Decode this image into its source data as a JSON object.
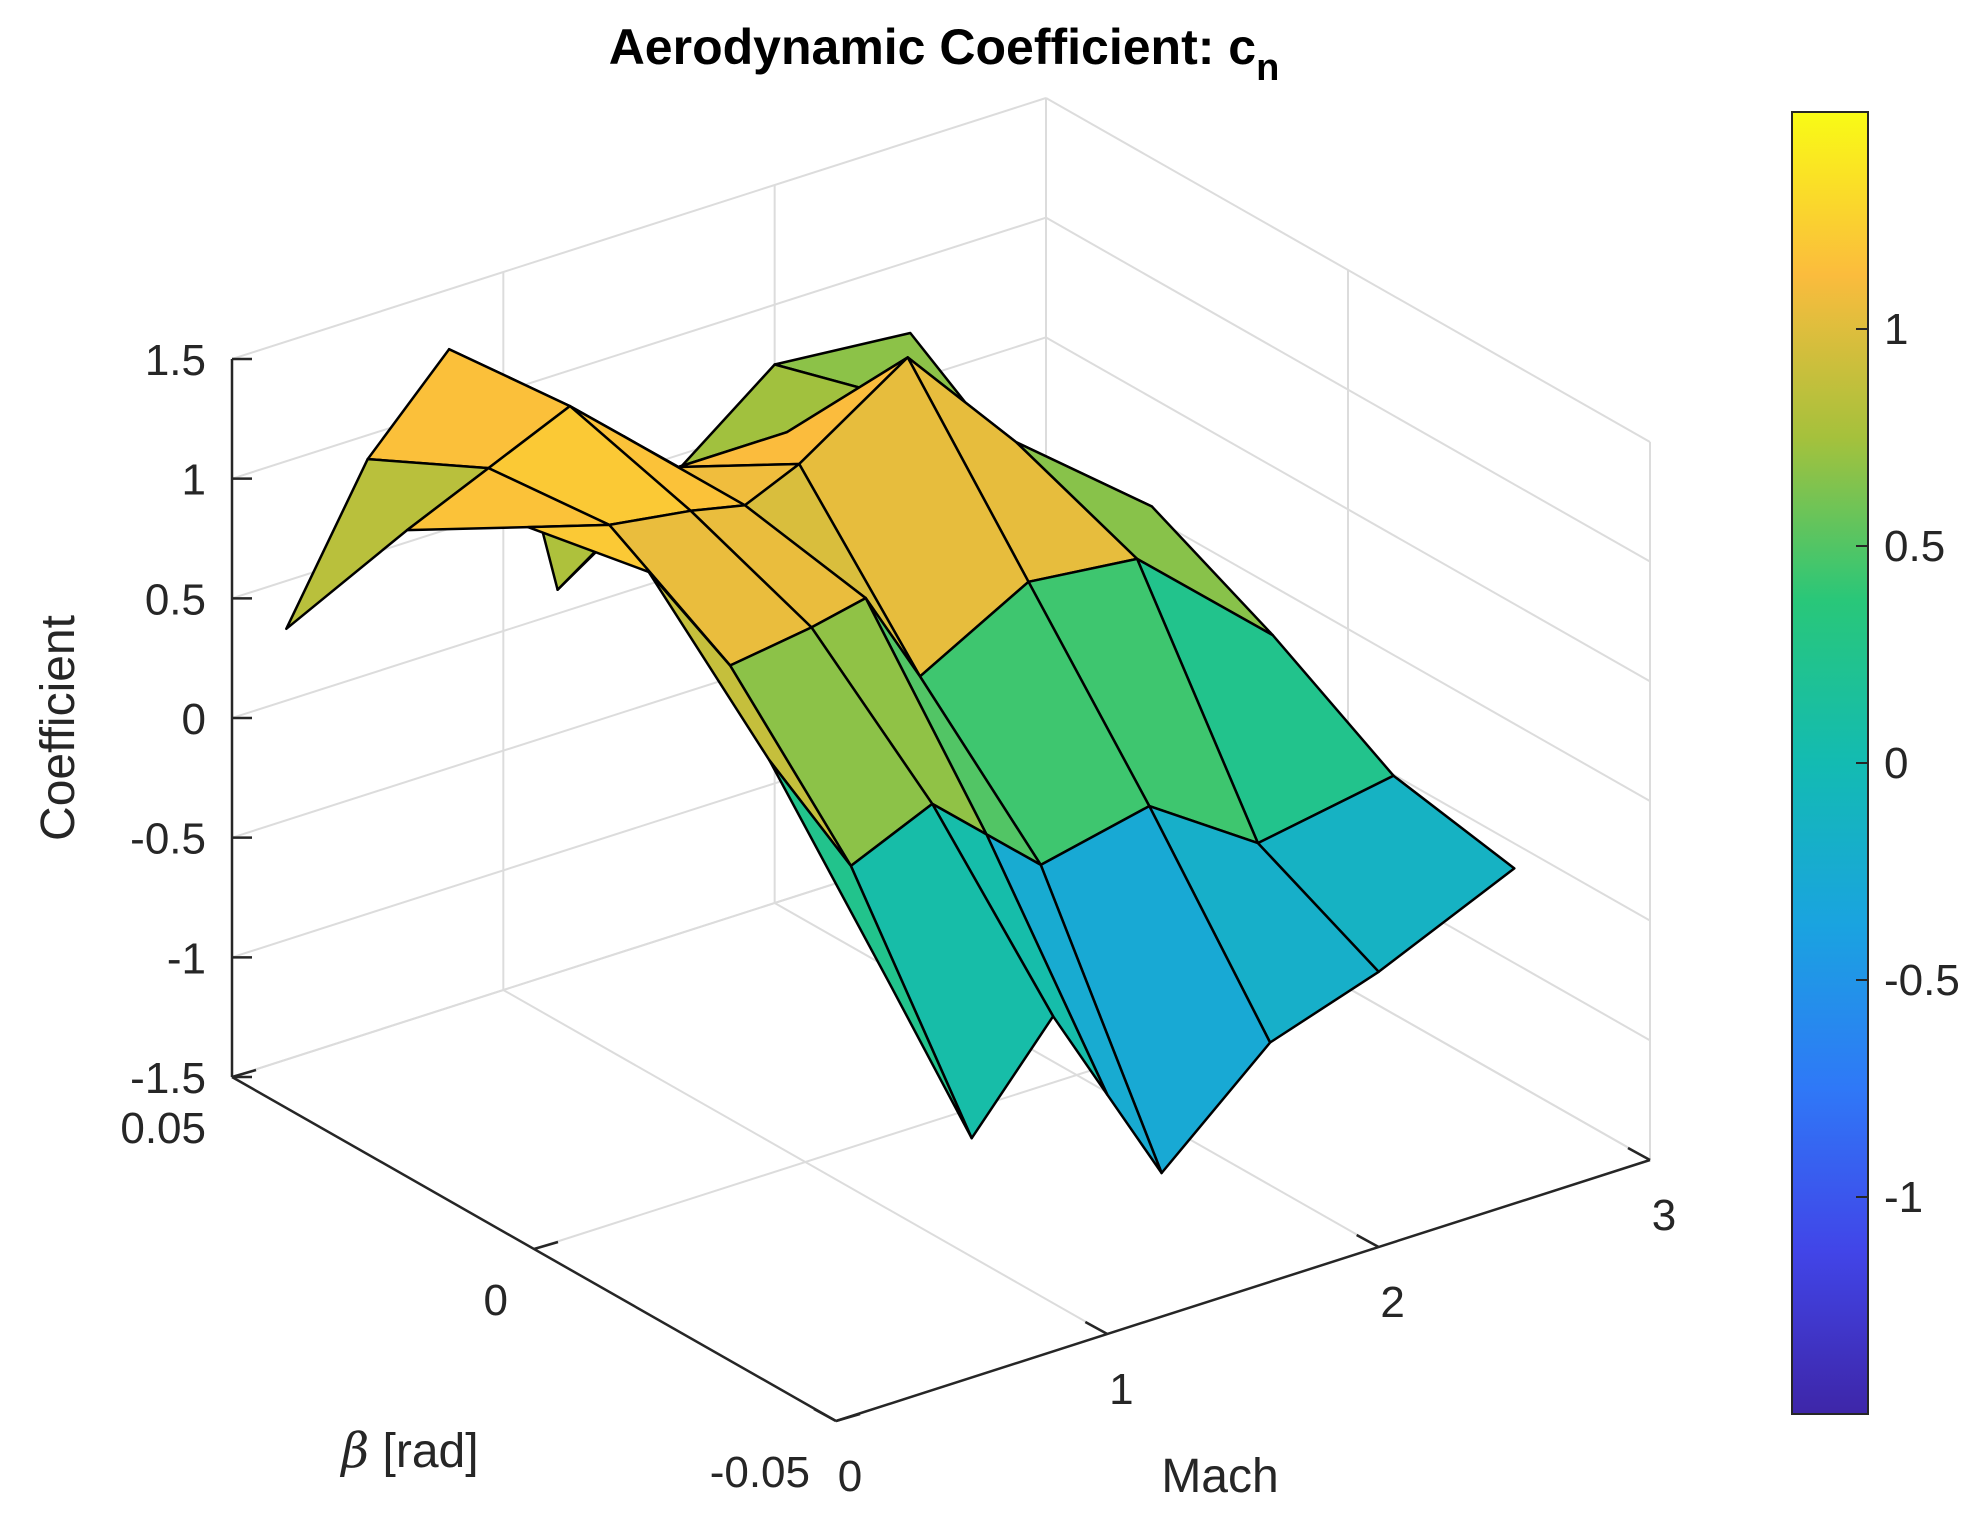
{
  "chart_data": {
    "type": "surface",
    "title": "Aerodynamic Coefficient: c",
    "title_subscript": "n",
    "xlabel": "Mach",
    "ylabel_symbol": "β",
    "ylabel_unit": " [rad]",
    "zlabel": "Coefficient",
    "x_ticks": [
      "0",
      "1",
      "2",
      "3"
    ],
    "y_ticks": [
      "0.05",
      "0",
      "-0.05"
    ],
    "z_ticks": [
      "1.5",
      "1",
      "0.5",
      "0",
      "-0.5",
      "-1",
      "-1.5"
    ],
    "colorbar_ticks": [
      "1",
      "0.5",
      "0",
      "-0.5",
      "-1"
    ],
    "xlim": [
      0,
      3
    ],
    "ylim": [
      -0.05,
      0.05
    ],
    "zlim": [
      -1.5,
      1.5
    ],
    "clim": [
      -1.5,
      1.5
    ],
    "colormap": "parula",
    "grid": true,
    "colorbar": "right",
    "mach": [
      0.2,
      0.5,
      0.8,
      1.0,
      1.2,
      1.6,
      2.0,
      2.5
    ],
    "beta": [
      -0.05,
      -0.03,
      -0.01,
      0.01,
      0.03,
      0.05
    ],
    "coefficient": [
      [
        0.25,
        0.9,
        1.4,
        1.3,
        1.0,
        0.3
      ],
      [
        -0.5,
        0.35,
        0.9,
        1.2,
        1.15,
        0.9
      ],
      [
        -0.1,
        0.5,
        0.95,
        1.15,
        1.3,
        1.25
      ],
      [
        -0.5,
        0.3,
        1.0,
        1.1,
        1.1,
        1.05
      ],
      [
        -0.9,
        0.1,
        0.6,
        1.2,
        0.9,
        0.1
      ],
      [
        -0.5,
        0.2,
        0.85,
        1.5,
        0.9,
        0.4
      ],
      [
        -0.35,
        -0.1,
        0.8,
        1.0,
        0.9,
        0.75
      ],
      [
        -0.1,
        0.0,
        0.3,
        0.55,
        0.35,
        0.7
      ]
    ]
  }
}
